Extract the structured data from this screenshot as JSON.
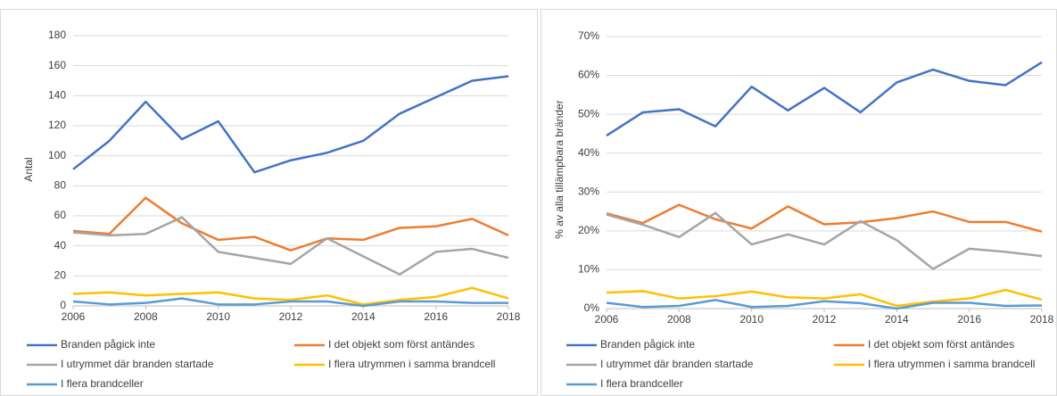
{
  "chart_data": [
    {
      "type": "line",
      "ylabel": "Antal",
      "x": [
        2006,
        2007,
        2008,
        2009,
        2010,
        2011,
        2012,
        2013,
        2014,
        2015,
        2016,
        2017,
        2018
      ],
      "xlim": [
        2006,
        2018
      ],
      "xticks": [
        2006,
        2008,
        2010,
        2012,
        2014,
        2016,
        2018
      ],
      "ylim": [
        0,
        180
      ],
      "yticks": [
        0,
        20,
        40,
        60,
        80,
        100,
        120,
        140,
        160,
        180
      ],
      "grid": true,
      "legend": "bottom",
      "series": [
        {
          "name": "Branden pågick inte",
          "color": "#4472c4",
          "values": [
            91,
            110,
            136,
            111,
            123,
            89,
            97,
            102,
            110,
            128,
            139,
            150,
            153
          ]
        },
        {
          "name": "I det objekt som först antändes",
          "color": "#ed7d31",
          "values": [
            50,
            48,
            72,
            55,
            44,
            46,
            37,
            45,
            44,
            52,
            53,
            58,
            47
          ]
        },
        {
          "name": "I utrymmet där branden startade",
          "color": "#a5a5a5",
          "values": [
            49,
            47,
            48,
            59,
            36,
            32,
            28,
            45,
            33,
            21,
            36,
            38,
            32
          ]
        },
        {
          "name": "I flera utrymmen i samma brandcell",
          "color": "#ffc000",
          "values": [
            8,
            9,
            7,
            8,
            9,
            5,
            4,
            7,
            1,
            4,
            6,
            12,
            5
          ]
        },
        {
          "name": "I flera brandceller",
          "color": "#5b9bd5",
          "values": [
            3,
            1,
            2,
            5,
            1,
            1,
            3,
            3,
            0,
            3,
            3,
            2,
            2
          ]
        }
      ]
    },
    {
      "type": "line",
      "ylabel": "% av alla tillämpbara bränder",
      "x": [
        2006,
        2007,
        2008,
        2009,
        2010,
        2011,
        2012,
        2013,
        2014,
        2015,
        2016,
        2017,
        2018
      ],
      "xlim": [
        2006,
        2018
      ],
      "xticks": [
        2006,
        2008,
        2010,
        2012,
        2014,
        2016,
        2018
      ],
      "ylim": [
        0,
        70
      ],
      "yticks": [
        {
          "value": 0,
          "label": "0%"
        },
        {
          "value": 10,
          "label": "10%"
        },
        {
          "value": 20,
          "label": "20%"
        },
        {
          "value": 30,
          "label": "30%"
        },
        {
          "value": 40,
          "label": "40%"
        },
        {
          "value": 50,
          "label": "50%"
        },
        {
          "value": 60,
          "label": "60%"
        },
        {
          "value": 70,
          "label": "70%"
        }
      ],
      "grid": true,
      "legend": "bottom",
      "series": [
        {
          "name": "Branden pågick inte",
          "color": "#4472c4",
          "values": [
            44.5,
            50.5,
            51.3,
            46.9,
            57.1,
            51,
            56.8,
            50.5,
            58.2,
            61.5,
            58.6,
            57.5,
            63.4
          ]
        },
        {
          "name": "I det objekt som först antändes",
          "color": "#ed7d31",
          "values": [
            24.5,
            22,
            26.7,
            23,
            20.6,
            26.3,
            21.7,
            22.2,
            23.3,
            25,
            22.3,
            22.3,
            19.8
          ]
        },
        {
          "name": "I utrymmet där branden startade",
          "color": "#a5a5a5",
          "values": [
            24.2,
            21.6,
            18.4,
            24.6,
            16.5,
            19.1,
            16.5,
            22.5,
            17.6,
            10.2,
            15.4,
            14.6,
            13.5
          ]
        },
        {
          "name": "I flera utrymmen i samma brandcell",
          "color": "#ffc000",
          "values": [
            4.1,
            4.5,
            2.6,
            3.2,
            4.4,
            2.9,
            2.6,
            3.7,
            0.7,
            1.8,
            2.6,
            4.8,
            2.3
          ]
        },
        {
          "name": "I flera brandceller",
          "color": "#5b9bd5",
          "values": [
            1.5,
            0.4,
            0.7,
            2.2,
            0.4,
            0.7,
            1.9,
            1.4,
            0,
            1.5,
            1.5,
            0.7,
            0.8
          ]
        }
      ]
    }
  ]
}
